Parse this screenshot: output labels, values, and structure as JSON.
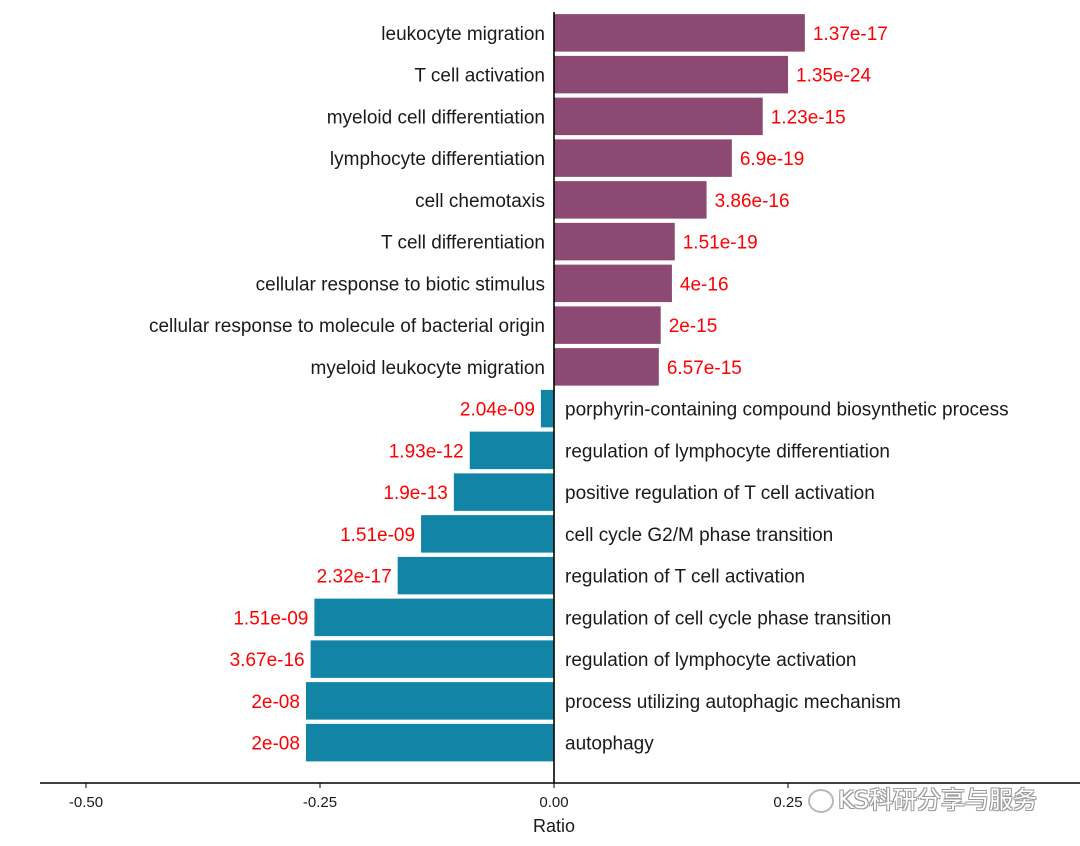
{
  "chart_data": {
    "type": "bar",
    "orientation": "horizontal",
    "title": "",
    "xlabel": "Ratio",
    "ylabel": "",
    "xlim": [
      -0.55,
      0.55
    ],
    "xticks": [
      -0.5,
      -0.25,
      0.0,
      0.25
    ],
    "xtick_labels": [
      "-0.50",
      "-0.25",
      "0.00",
      "0.25"
    ],
    "grid": false,
    "colors": {
      "positive": "#8c4a72",
      "negative": "#1284a6",
      "p_label": "#ff0000",
      "axis": "#000000"
    },
    "bars": [
      {
        "category": "leukocyte migration",
        "value": 0.268,
        "label": "1.37e-17"
      },
      {
        "category": "T cell activation",
        "value": 0.25,
        "label": "1.35e-24"
      },
      {
        "category": "myeloid cell differentiation",
        "value": 0.223,
        "label": "1.23e-15"
      },
      {
        "category": "lymphocyte differentiation",
        "value": 0.19,
        "label": "6.9e-19"
      },
      {
        "category": "cell chemotaxis",
        "value": 0.163,
        "label": "3.86e-16"
      },
      {
        "category": "T cell differentiation",
        "value": 0.129,
        "label": "1.51e-19"
      },
      {
        "category": "cellular response to biotic stimulus",
        "value": 0.126,
        "label": "4e-16"
      },
      {
        "category": "cellular response to molecule of bacterial origin",
        "value": 0.114,
        "label": "2e-15"
      },
      {
        "category": "myeloid leukocyte migration",
        "value": 0.112,
        "label": "6.57e-15"
      },
      {
        "category": "porphyrin-containing compound biosynthetic process",
        "value": -0.014,
        "label": "2.04e-09"
      },
      {
        "category": "regulation of lymphocyte differentiation",
        "value": -0.09,
        "label": "1.93e-12"
      },
      {
        "category": "positive regulation of T cell activation",
        "value": -0.107,
        "label": "1.9e-13"
      },
      {
        "category": "cell cycle G2/M phase transition",
        "value": -0.142,
        "label": "1.51e-09"
      },
      {
        "category": "regulation of T cell activation",
        "value": -0.167,
        "label": "2.32e-17"
      },
      {
        "category": "regulation of cell cycle phase transition",
        "value": -0.256,
        "label": "1.51e-09"
      },
      {
        "category": "regulation of lymphocyte activation",
        "value": -0.26,
        "label": "3.67e-16"
      },
      {
        "category": "process utilizing autophagic mechanism",
        "value": -0.265,
        "label": "2e-08"
      },
      {
        "category": "autophagy",
        "value": -0.265,
        "label": "2e-08"
      }
    ]
  },
  "watermark": {
    "text": "KS科研分享与服务",
    "icon": "wechat-icon"
  }
}
